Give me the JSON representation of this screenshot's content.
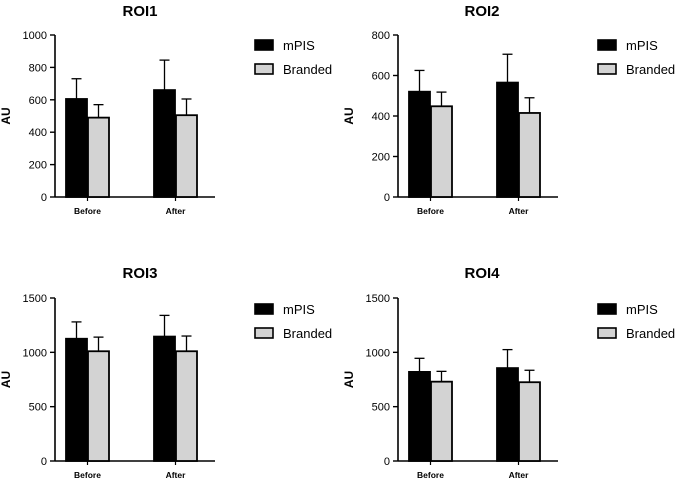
{
  "chart_data": [
    {
      "type": "bar",
      "title": "ROI1",
      "ylabel": "AU",
      "xlabel": "",
      "categories": [
        "Before",
        "After"
      ],
      "ylim": [
        0,
        1000
      ],
      "yticks": [
        0,
        200,
        400,
        600,
        800,
        1000
      ],
      "series": [
        {
          "name": "mPIS",
          "color": "#000000",
          "values": [
            605,
            660
          ],
          "errors": [
            125,
            185
          ]
        },
        {
          "name": "Branded",
          "color": "#d3d3d3",
          "values": [
            490,
            505
          ],
          "errors": [
            80,
            100
          ]
        }
      ],
      "legend": "top-right"
    },
    {
      "type": "bar",
      "title": "ROI2",
      "ylabel": "AU",
      "xlabel": "",
      "categories": [
        "Before",
        "After"
      ],
      "ylim": [
        0,
        800
      ],
      "yticks": [
        0,
        200,
        400,
        600,
        800
      ],
      "series": [
        {
          "name": "mPIS",
          "color": "#000000",
          "values": [
            520,
            565
          ],
          "errors": [
            105,
            140
          ]
        },
        {
          "name": "Branded",
          "color": "#d3d3d3",
          "values": [
            448,
            415
          ],
          "errors": [
            70,
            75
          ]
        }
      ],
      "legend": "top-right"
    },
    {
      "type": "bar",
      "title": "ROI3",
      "ylabel": "AU",
      "xlabel": "",
      "categories": [
        "Before",
        "After"
      ],
      "ylim": [
        0,
        1500
      ],
      "yticks": [
        0,
        500,
        1000,
        1500
      ],
      "series": [
        {
          "name": "mPIS",
          "color": "#000000",
          "values": [
            1125,
            1145
          ],
          "errors": [
            155,
            195
          ]
        },
        {
          "name": "Branded",
          "color": "#d3d3d3",
          "values": [
            1010,
            1010
          ],
          "errors": [
            130,
            140
          ]
        }
      ],
      "legend": "top-right"
    },
    {
      "type": "bar",
      "title": "ROI4",
      "ylabel": "AU",
      "xlabel": "",
      "categories": [
        "Before",
        "After"
      ],
      "ylim": [
        0,
        1500
      ],
      "yticks": [
        0,
        500,
        1000,
        1500
      ],
      "series": [
        {
          "name": "mPIS",
          "color": "#000000",
          "values": [
            820,
            855
          ],
          "errors": [
            125,
            170
          ]
        },
        {
          "name": "Branded",
          "color": "#d3d3d3",
          "values": [
            730,
            725
          ],
          "errors": [
            95,
            110
          ]
        }
      ],
      "legend": "top-right"
    }
  ]
}
